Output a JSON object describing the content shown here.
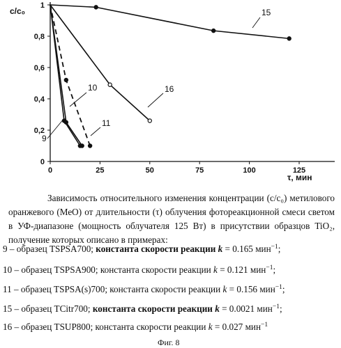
{
  "chart_data": {
    "type": "line",
    "ylabel": "c/c₀",
    "xlabel": "τ, мин",
    "xlim": [
      0,
      125
    ],
    "ylim": [
      0,
      1
    ],
    "xticks": [
      "0",
      "25",
      "50",
      "75",
      "100",
      "125"
    ],
    "yticks": [
      "0",
      "0,2",
      "0,4",
      "0,6",
      "0,8",
      "1"
    ],
    "grid": false,
    "series": [
      {
        "name": "15",
        "style": "solid",
        "marker": "filled-circle",
        "x": [
          0,
          23,
          82,
          120
        ],
        "y": [
          1.0,
          0.985,
          0.835,
          0.785
        ]
      },
      {
        "name": "16",
        "style": "solid",
        "marker": "open-circle",
        "x": [
          0,
          30,
          50
        ],
        "y": [
          1.0,
          0.49,
          0.26
        ]
      },
      {
        "name": "11",
        "style": "dashed",
        "marker": "filled-circle",
        "x": [
          0,
          8,
          20
        ],
        "y": [
          1.0,
          0.52,
          0.1
        ]
      },
      {
        "name": "10",
        "style": "solid",
        "marker": "filled-circle",
        "x": [
          0,
          8,
          16
        ],
        "y": [
          1.0,
          0.25,
          0.1
        ]
      },
      {
        "name": "9",
        "style": "solid",
        "marker": "filled-circle",
        "x": [
          0,
          7,
          15
        ],
        "y": [
          1.0,
          0.26,
          0.1
        ]
      }
    ]
  },
  "caption": {
    "text": "Зависимость относительного изменения концентрации (c/c₀) метилового оранжевого (МеО) от длительности (τ) облучения фотореакционной смеси светом в УФ-диапазоне (мощность облучателя 125 Вт) в присутствии образцов TiO₂, получение которых описано в примерах:"
  },
  "legend_rows": [
    {
      "prefix": "9 – образец TSPSA700;",
      "label": "константа скорости реакции",
      "k": "k",
      "value": "= 0.165 мин",
      "exp": "−1",
      "tail": ";"
    },
    {
      "prefix": "10 – образец TSPSA900;",
      "label": "константа скорости реакции",
      "k": "k",
      "value": "= 0.121 мин",
      "exp": "−1",
      "tail": ";"
    },
    {
      "prefix": "11 – образец TSPSA(s)700;",
      "label": "константа скорости реакции",
      "k": "k",
      "value": "= 0.156 мин",
      "exp": "−1",
      "tail": ";"
    },
    {
      "prefix": "15 – образец TCitr700;",
      "label": "константа скорости реакции",
      "k": "k",
      "value": "= 0.0021 мин",
      "exp": "−1",
      "tail": ";"
    },
    {
      "prefix": "16 – образец TSUP800;",
      "label": "константа скорости реакции",
      "k": "k",
      "value": "= 0.027 мин",
      "exp": "−1",
      "tail": ""
    }
  ],
  "figure_label": "Фиг. 8"
}
